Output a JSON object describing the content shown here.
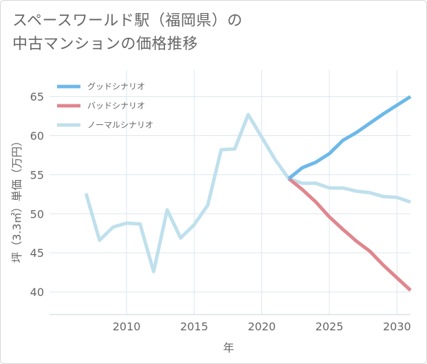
{
  "title": {
    "line1": "スペースワールド駅（福岡県）の",
    "line2": "中古マンションの価格推移"
  },
  "chart_data": {
    "type": "line",
    "title": "スペースワールド駅（福岡県）の中古マンションの価格推移",
    "xlabel": "年",
    "ylabel": "坪（3.3㎡）単価（万円）",
    "xlim": [
      2004.3,
      2031
    ],
    "ylim": [
      37.1,
      68.4
    ],
    "xticks": [
      2010,
      2015,
      2020,
      2025,
      2030
    ],
    "yticks": [
      40,
      45,
      50,
      55,
      60,
      65
    ],
    "grid": true,
    "legend_position": "top-left",
    "series": [
      {
        "name": "グッドシナリオ",
        "color": "#6cb8ea",
        "x": [
          2022,
          2023,
          2024,
          2025,
          2026,
          2027,
          2028,
          2029,
          2030,
          2031
        ],
        "y": [
          54.5,
          55.9,
          56.6,
          57.7,
          59.4,
          60.4,
          61.6,
          62.8,
          63.9,
          65.0
        ]
      },
      {
        "name": "バッドシナリオ",
        "color": "#e0868e",
        "x": [
          2022,
          2023,
          2024,
          2025,
          2026,
          2027,
          2028,
          2029,
          2030,
          2031
        ],
        "y": [
          54.5,
          53.1,
          51.5,
          49.6,
          48.0,
          46.5,
          45.2,
          43.4,
          41.8,
          40.2
        ]
      },
      {
        "name": "ノーマルシナリオ",
        "color": "#bfe0ec",
        "x": [
          2007,
          2008,
          2009,
          2010,
          2011,
          2012,
          2013,
          2014,
          2015,
          2016,
          2017,
          2018,
          2019,
          2020,
          2021,
          2022,
          2023,
          2024,
          2025,
          2026,
          2027,
          2028,
          2029,
          2030,
          2031
        ],
        "y": [
          52.6,
          46.6,
          48.3,
          48.8,
          48.7,
          42.6,
          50.5,
          46.9,
          48.6,
          51.1,
          58.2,
          58.3,
          62.7,
          59.8,
          56.9,
          54.5,
          53.9,
          53.9,
          53.3,
          53.3,
          52.9,
          52.7,
          52.2,
          52.1,
          51.5
        ]
      }
    ]
  }
}
